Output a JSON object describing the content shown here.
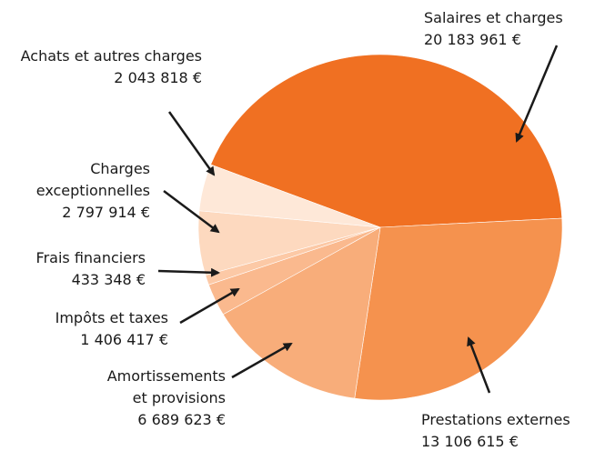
{
  "chart_data": {
    "type": "pie",
    "categories": [
      "Salaires et charges",
      "Prestations externes",
      "Amortissements et provisions",
      "Impôts et taxes",
      "Frais financiers",
      "Charges exceptionnelles",
      "Achats et autres charges"
    ],
    "values": [
      20183961,
      13106615,
      6689623,
      1406417,
      433348,
      2797914,
      2043818
    ],
    "value_labels": [
      "20 183 961 €",
      "13 106 615 €",
      "6 689 623 €",
      "1 406 417 €",
      "433 348 €",
      "2 797 914 €",
      "2 043 818 €"
    ],
    "colors": [
      "#f07022",
      "#f5924e",
      "#f8ad7a",
      "#fab98e",
      "#fcc9a6",
      "#fdd9bf",
      "#fee8d8"
    ]
  }
}
